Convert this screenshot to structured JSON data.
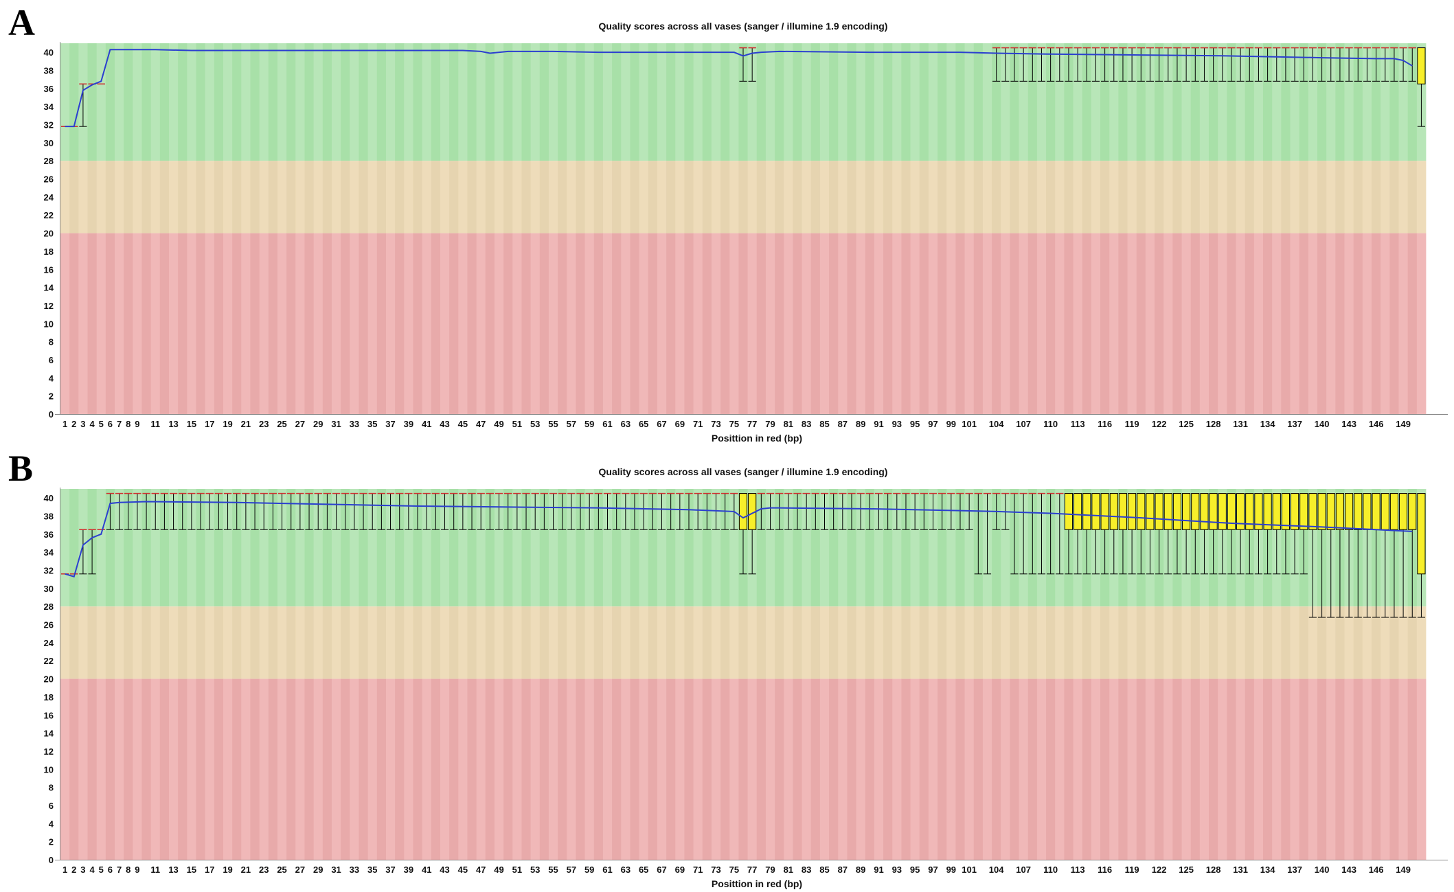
{
  "panels": [
    {
      "letter": "A",
      "chart_data": {
        "type": "box",
        "title": "Quality scores across all vases (sanger / illumine 1.9 encoding)",
        "xlabel": "Posittion in red (bp)",
        "ylabel": "",
        "ylim": [
          0,
          41
        ],
        "yticks": [
          0,
          2,
          4,
          6,
          8,
          10,
          12,
          14,
          16,
          18,
          20,
          22,
          24,
          26,
          28,
          30,
          32,
          34,
          36,
          38,
          40
        ],
        "xtick_labels": [
          "1",
          "2",
          "3",
          "4",
          "5",
          "6",
          "7",
          "8",
          "9",
          "11",
          "13",
          "15",
          "17",
          "19",
          "21",
          "23",
          "25",
          "27",
          "29",
          "31",
          "33",
          "35",
          "37",
          "39",
          "41",
          "43",
          "45",
          "47",
          "49",
          "51",
          "53",
          "55",
          "57",
          "59",
          "61",
          "63",
          "65",
          "67",
          "69",
          "71",
          "73",
          "75",
          "77",
          "79",
          "81",
          "83",
          "85",
          "87",
          "89",
          "91",
          "93",
          "95",
          "97",
          "99",
          "101",
          "104",
          "107",
          "110",
          "113",
          "116",
          "119",
          "122",
          "125",
          "128",
          "131",
          "134",
          "137",
          "140",
          "143",
          "146",
          "149"
        ],
        "bands": [
          {
            "from": 28,
            "to": 41,
            "label": "good",
            "colors": [
              "#b8e6b8",
              "#a8e0a8"
            ]
          },
          {
            "from": 20,
            "to": 28,
            "label": "reasonable",
            "colors": [
              "#eedcba",
              "#e6d4b0"
            ]
          },
          {
            "from": 0,
            "to": 20,
            "label": "poor",
            "colors": [
              "#f0b8b8",
              "#e8aaaa"
            ]
          }
        ],
        "colors": {
          "mean_line": "#2b3fd0",
          "box": "#f7ef2a",
          "whisker": "#000000",
          "median": "#d03030"
        },
        "series": [
          {
            "name": "mean",
            "x": [
              1,
              2,
              3,
              4,
              5,
              6,
              7,
              8,
              9,
              11,
              15,
              20,
              30,
              40,
              45,
              47,
              48,
              50,
              55,
              60,
              70,
              75,
              76,
              77,
              78,
              80,
              90,
              100,
              104,
              110,
              120,
              130,
              140,
              146,
              148,
              149,
              150
            ],
            "values": [
              31.8,
              31.8,
              35.8,
              36.4,
              36.8,
              40.3,
              40.3,
              40.3,
              40.3,
              40.3,
              40.2,
              40.2,
              40.2,
              40.2,
              40.2,
              40.1,
              39.9,
              40.1,
              40.1,
              40.0,
              40.0,
              40.0,
              39.6,
              39.9,
              40.0,
              40.1,
              40.0,
              40.0,
              39.9,
              39.8,
              39.7,
              39.6,
              39.4,
              39.3,
              39.3,
              39.1,
              38.5
            ]
          }
        ],
        "boxes": [
          {
            "position": 1,
            "q1": 31.8,
            "q3": 31.8,
            "low": 31.8,
            "high": 31.8
          },
          {
            "position": 2,
            "q1": 31.8,
            "q3": 31.8,
            "low": 31.8,
            "high": 31.8
          },
          {
            "position": 3,
            "q1": 36.5,
            "q3": 36.5,
            "low": 31.8,
            "high": 36.5
          },
          {
            "position": 4,
            "q1": 36.5,
            "q3": 36.5,
            "low": 36.5,
            "high": 36.5
          },
          {
            "position": 5,
            "q1": 36.5,
            "q3": 36.5,
            "low": 36.5,
            "high": 36.5
          },
          {
            "position": 76,
            "q1": 40.5,
            "q3": 40.5,
            "low": 36.8,
            "high": 40.5
          },
          {
            "position": 77,
            "q1": 40.5,
            "q3": 40.5,
            "low": 36.8,
            "high": 40.5
          },
          {
            "range": [
              104,
              150
            ],
            "q1": 40.5,
            "q3": 40.5,
            "low": 36.8,
            "high": 40.5
          },
          {
            "position": 151,
            "q1": 36.5,
            "q3": 40.5,
            "low": 31.8,
            "high": 40.5
          }
        ]
      }
    },
    {
      "letter": "B",
      "chart_data": {
        "type": "box",
        "title": "Quality scores across all vases (sanger / illumine 1.9 encoding)",
        "xlabel": "Posittion in red (bp)",
        "ylabel": "",
        "ylim": [
          0,
          41
        ],
        "yticks": [
          0,
          2,
          4,
          6,
          8,
          10,
          12,
          14,
          16,
          18,
          20,
          22,
          24,
          26,
          28,
          30,
          32,
          34,
          36,
          38,
          40
        ],
        "xtick_labels": [
          "1",
          "2",
          "3",
          "4",
          "5",
          "6",
          "7",
          "8",
          "9",
          "11",
          "13",
          "15",
          "17",
          "19",
          "21",
          "23",
          "25",
          "27",
          "29",
          "31",
          "33",
          "35",
          "37",
          "39",
          "41",
          "43",
          "45",
          "47",
          "49",
          "51",
          "53",
          "55",
          "57",
          "59",
          "61",
          "63",
          "65",
          "67",
          "69",
          "71",
          "73",
          "75",
          "77",
          "79",
          "81",
          "83",
          "85",
          "87",
          "89",
          "91",
          "93",
          "95",
          "97",
          "99",
          "101",
          "104",
          "107",
          "110",
          "113",
          "116",
          "119",
          "122",
          "125",
          "128",
          "131",
          "134",
          "137",
          "140",
          "143",
          "146",
          "149"
        ],
        "bands": [
          {
            "from": 28,
            "to": 41,
            "label": "good",
            "colors": [
              "#b8e6b8",
              "#a8e0a8"
            ]
          },
          {
            "from": 20,
            "to": 28,
            "label": "reasonable",
            "colors": [
              "#eedcba",
              "#e6d4b0"
            ]
          },
          {
            "from": 0,
            "to": 20,
            "label": "poor",
            "colors": [
              "#f0b8b8",
              "#e8aaaa"
            ]
          }
        ],
        "colors": {
          "mean_line": "#2b3fd0",
          "box": "#f7ef2a",
          "whisker": "#000000",
          "median": "#d03030"
        },
        "series": [
          {
            "name": "mean",
            "x": [
              1,
              2,
              3,
              4,
              5,
              6,
              7,
              10,
              20,
              30,
              40,
              50,
              60,
              70,
              75,
              76,
              77,
              78,
              79,
              80,
              90,
              100,
              104,
              110,
              120,
              130,
              140,
              146,
              150
            ],
            "values": [
              31.6,
              31.3,
              34.8,
              35.6,
              36.0,
              39.4,
              39.5,
              39.6,
              39.5,
              39.3,
              39.1,
              39.0,
              38.9,
              38.7,
              38.5,
              37.8,
              38.3,
              38.8,
              38.9,
              38.9,
              38.8,
              38.6,
              38.5,
              38.3,
              37.8,
              37.2,
              36.8,
              36.5,
              36.3
            ]
          }
        ],
        "boxes": [
          {
            "position": 1,
            "q1": 31.6,
            "q3": 31.6,
            "low": 31.6,
            "high": 31.6
          },
          {
            "position": 2,
            "q1": 31.6,
            "q3": 31.6,
            "low": 31.6,
            "high": 31.6
          },
          {
            "position": 3,
            "q1": 36.5,
            "q3": 36.5,
            "low": 31.6,
            "high": 36.5
          },
          {
            "position": 4,
            "q1": 36.5,
            "q3": 36.5,
            "low": 31.6,
            "high": 36.5
          },
          {
            "position": 5,
            "q1": 36.5,
            "q3": 36.5,
            "low": 36.5,
            "high": 36.5
          },
          {
            "range": [
              6,
              75
            ],
            "q1": 40.5,
            "q3": 40.5,
            "low": 36.5,
            "high": 40.5
          },
          {
            "range": [
              76,
              77
            ],
            "q1": 36.5,
            "q3": 40.5,
            "low": 31.6,
            "high": 40.5
          },
          {
            "range": [
              78,
              101
            ],
            "q1": 40.5,
            "q3": 40.5,
            "low": 36.5,
            "high": 40.5
          },
          {
            "range": [
              102,
              103
            ],
            "q1": 40.5,
            "q3": 40.5,
            "low": 31.6,
            "high": 40.5
          },
          {
            "range": [
              104,
              105
            ],
            "q1": 40.5,
            "q3": 40.5,
            "low": 36.5,
            "high": 40.5
          },
          {
            "range": [
              106,
              111
            ],
            "q1": 40.5,
            "q3": 40.5,
            "low": 31.6,
            "high": 40.5
          },
          {
            "range": [
              112,
              138
            ],
            "q1": 36.5,
            "q3": 40.5,
            "low": 31.6,
            "high": 40.5
          },
          {
            "range": [
              139,
              150
            ],
            "q1": 36.5,
            "q3": 40.5,
            "low": 26.8,
            "high": 40.5
          },
          {
            "position": 151,
            "q1": 31.6,
            "q3": 40.5,
            "low": 26.8,
            "high": 40.5
          }
        ]
      }
    }
  ]
}
